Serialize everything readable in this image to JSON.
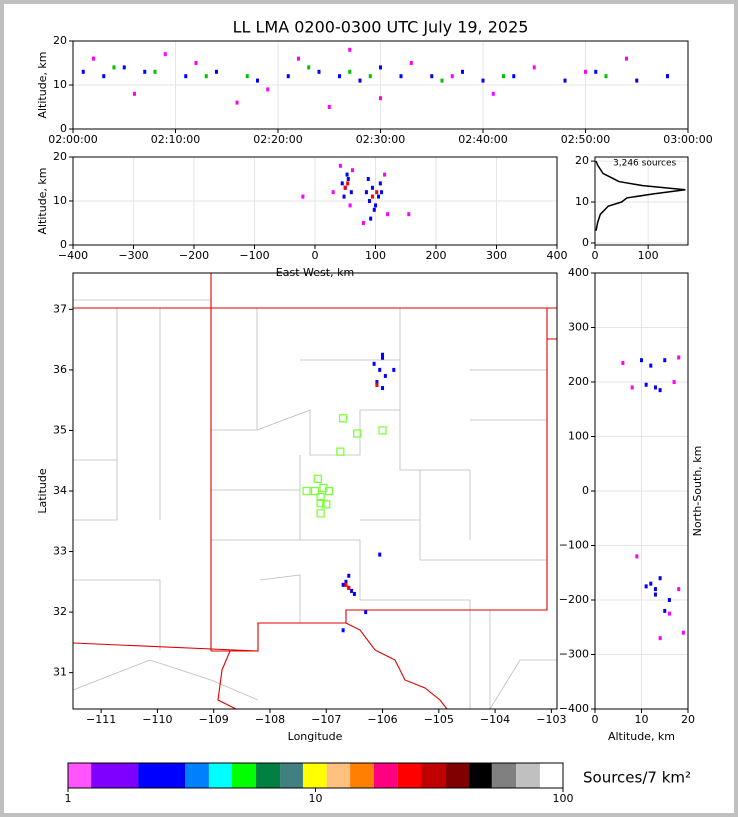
{
  "chart_data": [
    {
      "type": "scatter",
      "title": "LL LMA 0200-0300 UTC July 19, 2025",
      "ylabel": "Altitude, km",
      "xlim": [
        0,
        60
      ],
      "xticks": [
        {
          "value": 0,
          "label": "02:00:00"
        },
        {
          "value": 10,
          "label": "02:10:00"
        },
        {
          "value": 20,
          "label": "02:20:00"
        },
        {
          "value": 30,
          "label": "02:30:00"
        },
        {
          "value": 40,
          "label": "02:40:00"
        },
        {
          "value": 50,
          "label": "02:50:00"
        },
        {
          "value": 60,
          "label": "03:00:00"
        }
      ],
      "ylim": [
        0,
        20
      ],
      "yticks": [
        0,
        10,
        20
      ],
      "grid": true,
      "series": [
        {
          "color": "#ff00ff",
          "x": [
            2,
            6,
            9,
            12,
            16,
            19,
            22,
            25,
            27,
            30,
            33,
            37,
            41,
            45,
            50,
            54,
            58
          ],
          "y": [
            16,
            8,
            17,
            15,
            6,
            9,
            16,
            5,
            18,
            7,
            15,
            12,
            8,
            14,
            13,
            16,
            12
          ]
        },
        {
          "color": "#0000ff",
          "x": [
            1,
            3,
            5,
            7,
            11,
            14,
            18,
            21,
            24,
            26,
            28,
            30,
            32,
            35,
            38,
            40,
            43,
            48,
            51,
            55,
            58
          ],
          "y": [
            13,
            12,
            14,
            13,
            12,
            13,
            11,
            12,
            13,
            12,
            11,
            14,
            12,
            12,
            13,
            11,
            12,
            11,
            13,
            11,
            12
          ]
        },
        {
          "color": "#00c000",
          "x": [
            4,
            8,
            13,
            17,
            23,
            27,
            29,
            36,
            42,
            52
          ],
          "y": [
            14,
            13,
            12,
            12,
            14,
            13,
            12,
            11,
            12,
            12
          ]
        }
      ]
    },
    {
      "type": "scatter",
      "xlabel": "East-West, km",
      "ylabel": "Altitude, km",
      "xlim": [
        -400,
        400
      ],
      "xticks": [
        {
          "value": -400,
          "label": "−400"
        },
        {
          "value": -300,
          "label": "−300"
        },
        {
          "value": -200,
          "label": "−200"
        },
        {
          "value": -100,
          "label": "−100"
        },
        0,
        100,
        200,
        300,
        400
      ],
      "ylim": [
        0,
        20
      ],
      "yticks": [
        0,
        10,
        20
      ],
      "grid": true,
      "series": [
        {
          "color": "#0000ff",
          "x": [
            45,
            50,
            55,
            60,
            48,
            53,
            85,
            90,
            95,
            100,
            105,
            110,
            88,
            98,
            108,
            92
          ],
          "y": [
            14,
            13,
            15,
            12,
            11,
            16,
            12,
            10,
            13,
            9,
            11,
            12,
            15,
            8,
            14,
            6
          ]
        },
        {
          "color": "#ff00ff",
          "x": [
            42,
            58,
            62,
            80,
            115,
            120,
            155,
            30,
            -20
          ],
          "y": [
            18,
            9,
            17,
            5,
            16,
            7,
            7,
            12,
            11
          ]
        },
        {
          "color": "#ff0000",
          "x": [
            50,
            54,
            95,
            102
          ],
          "y": [
            13,
            14,
            11,
            12
          ]
        }
      ]
    },
    {
      "type": "line",
      "orientation": "horizontal",
      "annotation": "3,246 sources",
      "xlim": [
        0,
        175
      ],
      "xticks": [
        0,
        100
      ],
      "ylim": [
        -0.5,
        21
      ],
      "yticks": [
        0,
        10,
        20
      ],
      "grid": true,
      "color": "#000000",
      "x": [
        3,
        5,
        7,
        9,
        10,
        11,
        12,
        13,
        14,
        15,
        16,
        17,
        18,
        19,
        20
      ],
      "values": [
        2,
        5,
        10,
        25,
        50,
        60,
        110,
        170,
        90,
        45,
        30,
        15,
        10,
        5,
        2
      ]
    },
    {
      "type": "scatter",
      "xlabel": "Longitude",
      "ylabel": "Latitude",
      "xlim": [
        -111.5,
        -102.9
      ],
      "xticks": [
        {
          "value": -111,
          "label": "−111"
        },
        {
          "value": -110,
          "label": "−110"
        },
        {
          "value": -109,
          "label": "−109"
        },
        {
          "value": -108,
          "label": "−108"
        },
        {
          "value": -107,
          "label": "−107"
        },
        {
          "value": -106,
          "label": "−106"
        },
        {
          "value": -105,
          "label": "−105"
        },
        {
          "value": -104,
          "label": "−104"
        },
        {
          "value": -103,
          "label": "−103"
        }
      ],
      "ylim": [
        30.4,
        37.6
      ],
      "yticks": [
        31,
        32,
        33,
        34,
        35,
        36,
        37
      ],
      "grid": false,
      "series": [
        {
          "color": "#0000ff",
          "x": [
            -106.0,
            -106.05,
            -106.1,
            -106.0,
            -105.95,
            -106.15,
            -106.0,
            -105.8,
            -106.6,
            -106.65,
            -106.55,
            -106.7,
            -106.6,
            -106.5,
            -106.7,
            -106.05,
            -106.3
          ],
          "y": [
            36.2,
            36.0,
            35.8,
            35.7,
            35.9,
            36.1,
            36.25,
            36.0,
            32.4,
            32.5,
            32.35,
            32.45,
            32.6,
            32.3,
            31.7,
            32.95,
            32.0
          ]
        },
        {
          "color": "#ff0000",
          "x": [
            -106.6,
            -106.65,
            -106.1
          ],
          "y": [
            32.4,
            32.45,
            35.75
          ]
        },
        {
          "color": "#80ff40",
          "marker": "square",
          "x": [
            -106.7,
            -106.45,
            -106.0,
            -106.75,
            -107.15,
            -107.05,
            -107.2,
            -107.1,
            -106.95,
            -107.35,
            -107.1,
            -107.0,
            -107.1
          ],
          "y": [
            35.2,
            34.95,
            35.0,
            34.65,
            34.2,
            34.05,
            34.0,
            33.9,
            34.0,
            34.0,
            33.8,
            33.78,
            33.63
          ]
        }
      ]
    },
    {
      "type": "scatter",
      "xlabel": "Altitude, km",
      "ylabel": "North-South, km",
      "xlim": [
        0,
        20
      ],
      "xticks": [
        0,
        10,
        20
      ],
      "ylim": [
        -400,
        400
      ],
      "yticks": [
        {
          "value": -400,
          "label": "−400"
        },
        {
          "value": -300,
          "label": "−300"
        },
        {
          "value": -200,
          "label": "−200"
        },
        {
          "value": -100,
          "label": "−100"
        },
        0,
        100,
        200,
        300,
        400
      ],
      "grid": true,
      "series": [
        {
          "color": "#0000ff",
          "x": [
            10,
            12,
            13,
            14,
            11,
            15,
            12,
            13,
            14,
            11,
            13,
            15,
            16
          ],
          "y": [
            240,
            230,
            190,
            185,
            195,
            240,
            -170,
            -180,
            -160,
            -175,
            -190,
            -220,
            -200
          ]
        },
        {
          "color": "#ff00ff",
          "x": [
            6,
            8,
            18,
            17,
            9,
            19,
            16,
            18,
            14
          ],
          "y": [
            235,
            190,
            245,
            200,
            -120,
            -260,
            -225,
            -180,
            -270
          ]
        }
      ]
    },
    {
      "type": "colorbar",
      "label": "Sources/7 km²",
      "log": true,
      "xlim": [
        1,
        100
      ],
      "xticks": [
        1,
        10,
        100
      ],
      "bins": [
        1,
        1.24,
        1.92,
        2.97,
        3.71,
        4.6,
        5.75,
        7.19,
        8.9,
        11.1,
        13.8,
        17.2,
        21.5,
        26.7,
        33.4,
        41.7,
        51.6,
        64.6,
        80.7,
        100
      ],
      "colors": [
        "#ff55ff",
        "#8000ff",
        "#0000ff",
        "#0080ff",
        "#00ffff",
        "#00ff00",
        "#008040",
        "#408080",
        "#ffff00",
        "#ffc080",
        "#ff8000",
        "#ff0080",
        "#ff0000",
        "#c00000",
        "#800000",
        "#000000",
        "#808080",
        "#c0c0c0",
        "#ffffff"
      ]
    }
  ]
}
